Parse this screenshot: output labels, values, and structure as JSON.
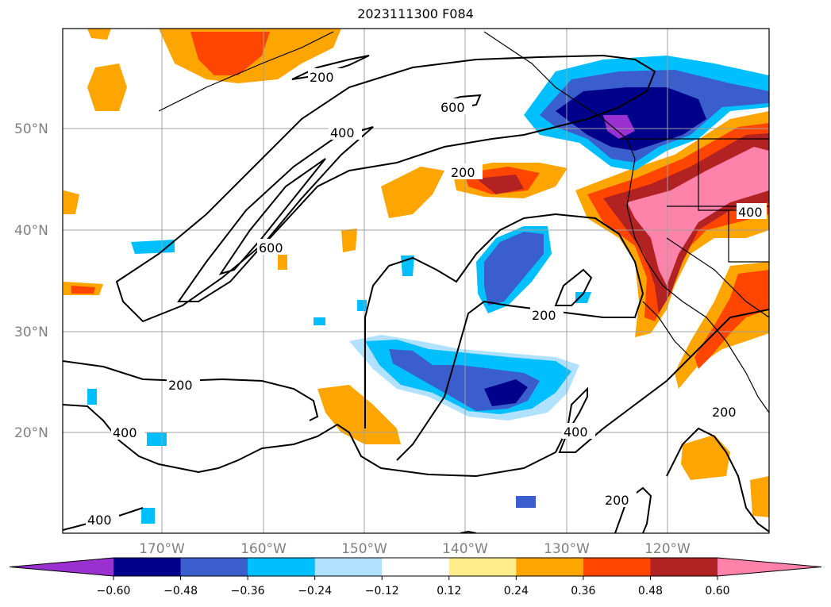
{
  "title": "2023111300 F084",
  "map": {
    "lat_labels": [
      "50°N",
      "40°N",
      "30°N",
      "20°N"
    ],
    "lon_labels": [
      "170°W",
      "160°W",
      "150°W",
      "140°W",
      "130°W",
      "120°W"
    ],
    "contour_labels": [
      "200",
      "600",
      "400",
      "200",
      "600",
      "200",
      "200",
      "400",
      "400",
      "200",
      "200",
      "400",
      "400"
    ],
    "grid": true
  },
  "colorbar": {
    "ticks": [
      "−0.60",
      "−0.48",
      "−0.36",
      "−0.24",
      "−0.12",
      "0.12",
      "0.24",
      "0.36",
      "0.48",
      "0.60"
    ],
    "colors": [
      "#9b30d0",
      "#00008b",
      "#3a5fcd",
      "#00bfff",
      "#b0e2ff",
      "#ffffff",
      "#ffec8b",
      "#ffa500",
      "#ff4500",
      "#b22222",
      "#ff82ab"
    ],
    "extend": "both"
  },
  "colors": {
    "contour": "#000000",
    "grid": "#a0a0a0",
    "axis_label": "#808080"
  }
}
